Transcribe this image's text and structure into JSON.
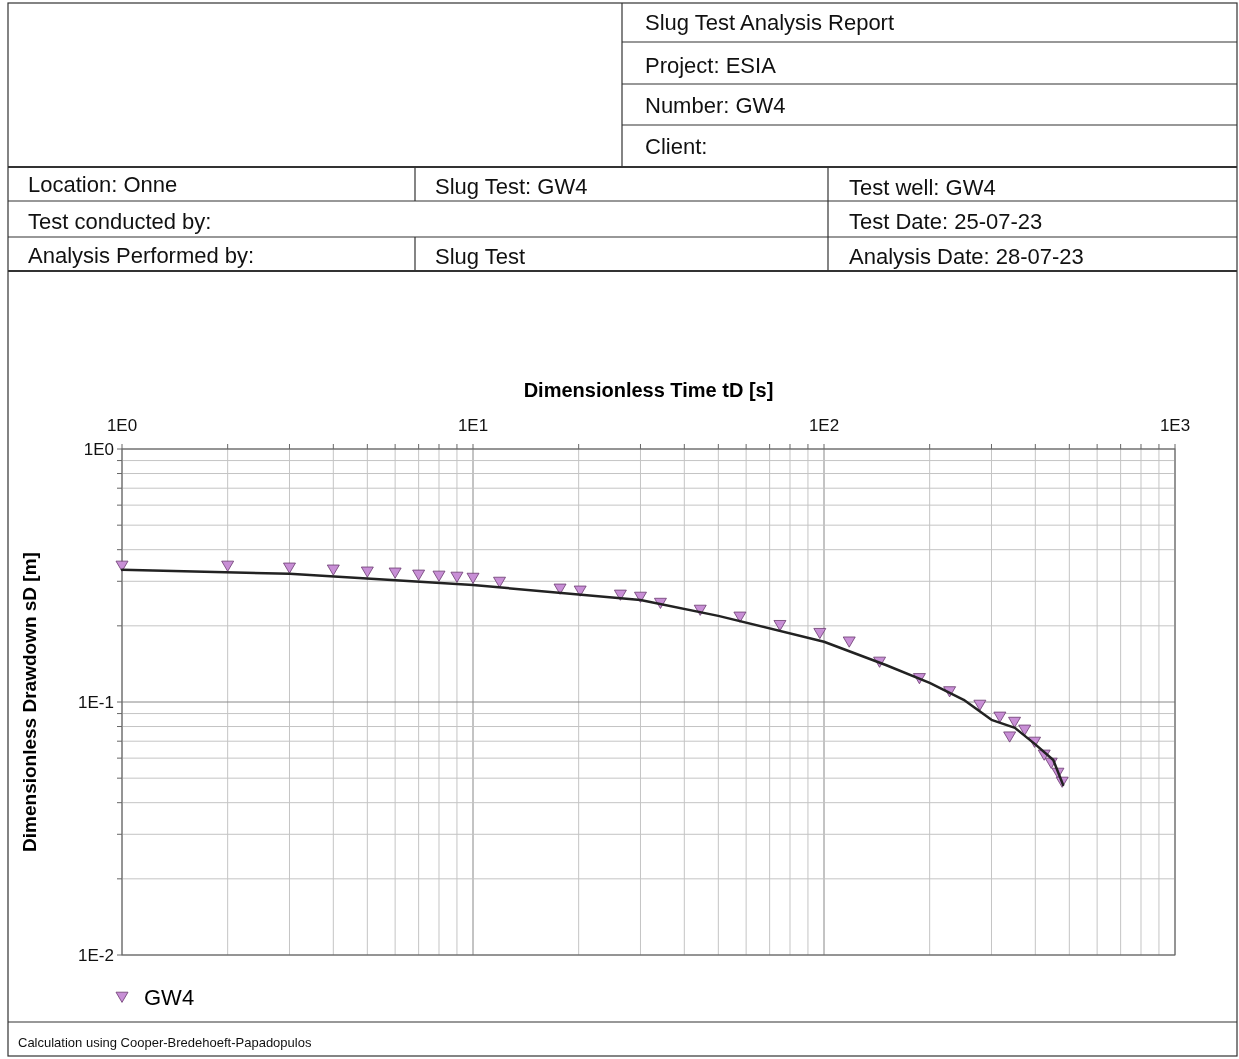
{
  "chart_data": {
    "type": "scatter",
    "title": "Slug Test Analysis Report",
    "annotations": [
      "Project: ESIA",
      "Number: GW4",
      "Client:",
      "Location: Onne",
      "Slug Test: GW4",
      "Test well: GW4",
      "Test conducted by:",
      "Test Date: 25-07-23",
      "Analysis Performed by:",
      "Slug Test",
      "Analysis Date: 28-07-23",
      "Calculation using Cooper-Bredehoeft-Papadopulos"
    ],
    "xlabel": "Dimensionless Time tD [s]",
    "ylabel": "Dimensionless Drawdown sD [m]",
    "log": "xy",
    "grid": true,
    "legend": "bottom left",
    "xlim": [
      1,
      1000
    ],
    "ylim": [
      0.01,
      1
    ],
    "xticks": [
      {
        "value": 1,
        "label": "1E0"
      },
      {
        "value": 2,
        "label": null
      },
      {
        "value": 3,
        "label": null
      },
      {
        "value": 4,
        "label": null
      },
      {
        "value": 5,
        "label": null
      },
      {
        "value": 6,
        "label": null
      },
      {
        "value": 7,
        "label": null
      },
      {
        "value": 8,
        "label": null
      },
      {
        "value": 9,
        "label": null
      },
      {
        "value": 10,
        "label": "1E1"
      },
      {
        "value": 20,
        "label": null
      },
      {
        "value": 30,
        "label": null
      },
      {
        "value": 40,
        "label": null
      },
      {
        "value": 50,
        "label": null
      },
      {
        "value": 60,
        "label": null
      },
      {
        "value": 70,
        "label": null
      },
      {
        "value": 80,
        "label": null
      },
      {
        "value": 90,
        "label": null
      },
      {
        "value": 100,
        "label": "1E2"
      },
      {
        "value": 200,
        "label": null
      },
      {
        "value": 300,
        "label": null
      },
      {
        "value": 400,
        "label": null
      },
      {
        "value": 500,
        "label": null
      },
      {
        "value": 600,
        "label": null
      },
      {
        "value": 700,
        "label": null
      },
      {
        "value": 800,
        "label": null
      },
      {
        "value": 900,
        "label": null
      },
      {
        "value": 1000,
        "label": "1E3"
      }
    ],
    "yticks": [
      {
        "value": 0.01,
        "label": "1E-2"
      },
      {
        "value": 0.02,
        "label": null
      },
      {
        "value": 0.03,
        "label": null
      },
      {
        "value": 0.04,
        "label": null
      },
      {
        "value": 0.05,
        "label": null
      },
      {
        "value": 0.06,
        "label": null
      },
      {
        "value": 0.07,
        "label": null
      },
      {
        "value": 0.08,
        "label": null
      },
      {
        "value": 0.09,
        "label": null
      },
      {
        "value": 0.1,
        "label": "1E-1"
      },
      {
        "value": 0.2,
        "label": null
      },
      {
        "value": 0.3,
        "label": null
      },
      {
        "value": 0.4,
        "label": null
      },
      {
        "value": 0.5,
        "label": null
      },
      {
        "value": 0.6,
        "label": null
      },
      {
        "value": 0.7,
        "label": null
      },
      {
        "value": 0.8,
        "label": null
      },
      {
        "value": 0.9,
        "label": null
      },
      {
        "value": 1,
        "label": "1E0"
      }
    ],
    "series": [
      {
        "name": "GW4",
        "marker": "triangle",
        "color": "#c88fd6",
        "x": [
          1,
          2,
          3,
          4,
          5,
          6,
          7,
          8,
          9,
          10,
          11.9,
          17.7,
          20.2,
          26.3,
          30,
          34.2,
          44.4,
          57.6,
          74.9,
          97.3,
          118,
          144,
          187,
          228,
          278,
          317,
          338,
          349,
          373,
          398,
          424,
          444,
          464,
          477
        ],
        "values": [
          0.345,
          0.345,
          0.339,
          0.333,
          0.327,
          0.324,
          0.318,
          0.315,
          0.312,
          0.309,
          0.298,
          0.28,
          0.275,
          0.265,
          0.26,
          0.246,
          0.231,
          0.217,
          0.201,
          0.187,
          0.173,
          0.144,
          0.124,
          0.11,
          0.0973,
          0.0873,
          0.0729,
          0.0833,
          0.0776,
          0.0695,
          0.0618,
          0.0574,
          0.0524,
          0.0483
        ]
      },
      {
        "type": "line",
        "color": "#222222",
        "x": [
          1,
          3,
          10,
          30,
          50,
          100,
          150,
          200,
          250,
          300,
          350,
          400,
          450,
          480
        ],
        "values": [
          0.333,
          0.321,
          0.29,
          0.253,
          0.219,
          0.173,
          0.14,
          0.119,
          0.102,
          0.085,
          0.079,
          0.068,
          0.059,
          0.047
        ]
      }
    ]
  }
}
